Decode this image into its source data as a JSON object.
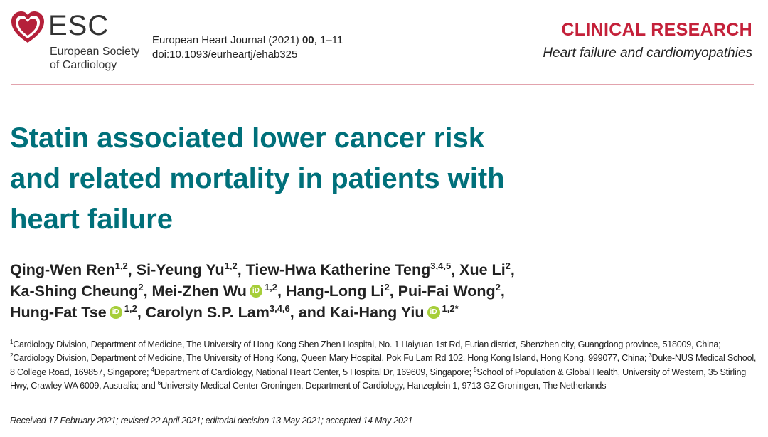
{
  "header": {
    "logo": {
      "mark": "ESC",
      "society_line1": "European Society",
      "society_line2": "of Cardiology"
    },
    "journal": {
      "name": "European Heart Journal (2021)",
      "volume": "00",
      "pages": ", 1–11",
      "doi": "doi:10.1093/eurheartj/ehab325"
    },
    "section": "CLINICAL RESEARCH",
    "subsection": "Heart failure and cardiomyopathies"
  },
  "title_lines": [
    "Statin associated lower cancer risk",
    "and related mortality in patients with",
    "heart failure"
  ],
  "authors_lines": [
    [
      {
        "name": "Qing-Wen Ren",
        "sup": "1,2",
        "orcid": false,
        "sep": ", "
      },
      {
        "name": "Si-Yeung Yu",
        "sup": "1,2",
        "orcid": false,
        "sep": ", "
      },
      {
        "name": "Tiew-Hwa Katherine Teng",
        "sup": "3,4,5",
        "orcid": false,
        "sep": ", "
      },
      {
        "name": "Xue Li",
        "sup": "2",
        "orcid": false,
        "sep": ","
      }
    ],
    [
      {
        "name": "Ka-Shing Cheung",
        "sup": "2",
        "orcid": false,
        "sep": ", "
      },
      {
        "name": "Mei-Zhen Wu",
        "sup": "1,2",
        "orcid": true,
        "sep": ", "
      },
      {
        "name": "Hang-Long Li",
        "sup": "2",
        "orcid": false,
        "sep": ", "
      },
      {
        "name": "Pui-Fai Wong",
        "sup": "2",
        "orcid": false,
        "sep": ","
      }
    ],
    [
      {
        "name": "Hung-Fat Tse",
        "sup": "1,2",
        "orcid": true,
        "sep": ", "
      },
      {
        "name": "Carolyn S.P. Lam",
        "sup": "3,4,6",
        "orcid": false,
        "sep": ", "
      },
      {
        "name": "and Kai-Hang Yiu",
        "sup": "1,2*",
        "orcid": true,
        "sep": ""
      }
    ]
  ],
  "orcid_label": "iD",
  "affiliations": [
    {
      "sup": "1",
      "text": "Cardiology Division, Department of Medicine, The University of Hong Kong Shen Zhen Hospital, No. 1 Haiyuan 1st Rd, Futian district, Shenzhen city, Guangdong province, 518009, China; "
    },
    {
      "sup": "2",
      "text": "Cardiology Division, Department of Medicine, The University of Hong Kong, Queen Mary Hospital, Pok Fu Lam Rd 102. Hong Kong Island, Hong Kong, 999077, China; "
    },
    {
      "sup": "3",
      "text": "Duke-NUS Medical School, 8 College Road, 169857, Singapore; "
    },
    {
      "sup": "4",
      "text": "Department of Cardiology, National Heart Center, 5 Hospital Dr, 169609, Singapore; "
    },
    {
      "sup": "5",
      "text": "School of Population & Global Health, University of Western, 35 Stirling Hwy, Crawley WA 6009, Australia; and "
    },
    {
      "sup": "6",
      "text": "University Medical Center Groningen, Department of Cardiology, Hanzeplein 1, 9713 GZ Groningen, The Netherlands"
    }
  ],
  "received": "Received 17 February 2021; revised 22 April 2021; editorial decision 13 May 2021; accepted 14 May 2021",
  "colors": {
    "title": "#00707a",
    "section": "#c4213a",
    "orcid": "#a6ce39",
    "rule": "#e2a3ad"
  }
}
